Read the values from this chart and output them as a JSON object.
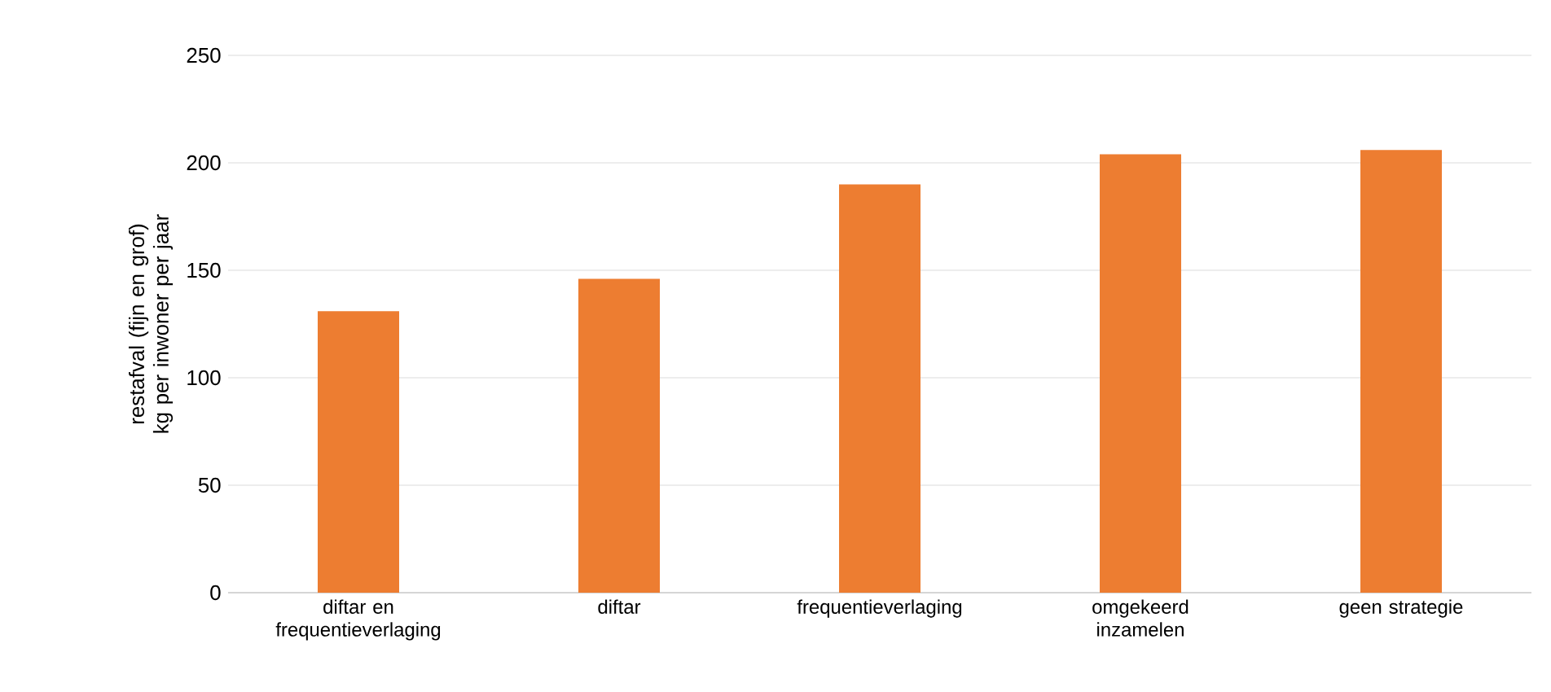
{
  "chart_data": {
    "type": "bar",
    "ylabel": "restafval (fijn en grof) kg per inwoner per jaar",
    "categories": [
      "diftar en frequentieverlaging",
      "diftar",
      "frequentieverlaging",
      "omgekeerd inzamelen",
      "geen strategie"
    ],
    "values": [
      131,
      146,
      190,
      204,
      206
    ],
    "color": "#ed7d31",
    "ylim": [
      0,
      250
    ],
    "yticks": [
      0,
      50,
      100,
      150,
      200,
      250
    ],
    "grid": "y"
  }
}
